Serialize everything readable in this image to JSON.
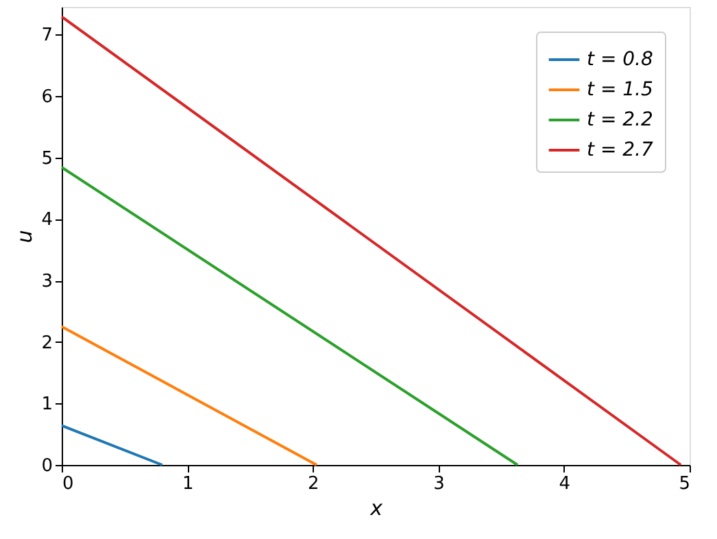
{
  "chart_data": {
    "type": "line",
    "xlabel": "x",
    "ylabel": "u",
    "xlim": [
      0,
      5
    ],
    "ylim": [
      0,
      7.45
    ],
    "xticks": [
      0,
      1,
      2,
      3,
      4,
      5
    ],
    "yticks": [
      0,
      1,
      2,
      3,
      4,
      5,
      6,
      7
    ],
    "grid": false,
    "legend": "top right",
    "line_style": "solid",
    "series": [
      {
        "name": "t = 0.8",
        "color": "#1f77b4",
        "x": [
          0,
          0.8
        ],
        "values": [
          0.64,
          0
        ]
      },
      {
        "name": "t = 1.5",
        "color": "#ff7f0e",
        "x": [
          0,
          2.03
        ],
        "values": [
          2.25,
          0
        ]
      },
      {
        "name": "t = 2.2",
        "color": "#2ca02c",
        "x": [
          0,
          3.63
        ],
        "values": [
          4.84,
          0
        ]
      },
      {
        "name": "t = 2.7",
        "color": "#d62728",
        "x": [
          0,
          4.93
        ],
        "values": [
          7.29,
          0
        ]
      }
    ]
  }
}
